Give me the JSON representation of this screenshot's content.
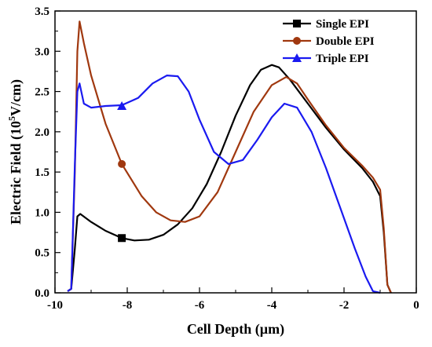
{
  "chart_data": {
    "type": "line",
    "title": "",
    "xlabel": "Cell Depth (µm)",
    "ylabel_parts": {
      "prefix": "Electric Field (10",
      "exponent": "5",
      "suffix": "V/cm)"
    },
    "xlim": [
      -10,
      0
    ],
    "ylim": [
      0,
      3.5
    ],
    "x_ticks": [
      -10,
      -8,
      -6,
      -4,
      -2,
      0
    ],
    "x_tick_labels": [
      "-10",
      "-8",
      "-6",
      "-4",
      "-2",
      "0"
    ],
    "y_ticks": [
      0,
      0.5,
      1.0,
      1.5,
      2.0,
      2.5,
      3.0,
      3.5
    ],
    "y_tick_labels": [
      "0.0",
      "0.5",
      "1.0",
      "1.5",
      "2.0",
      "2.5",
      "3.0",
      "3.5"
    ],
    "legend_position": "top-right",
    "series": [
      {
        "name": "Single EPI",
        "color": "#000000",
        "marker": "square",
        "marker_point": [
          -8.15,
          0.68
        ],
        "points": [
          [
            -9.65,
            0.02
          ],
          [
            -9.55,
            0.05
          ],
          [
            -9.45,
            0.55
          ],
          [
            -9.38,
            0.95
          ],
          [
            -9.3,
            0.98
          ],
          [
            -9.0,
            0.88
          ],
          [
            -8.6,
            0.77
          ],
          [
            -8.15,
            0.68
          ],
          [
            -7.8,
            0.65
          ],
          [
            -7.4,
            0.66
          ],
          [
            -7.0,
            0.72
          ],
          [
            -6.6,
            0.85
          ],
          [
            -6.2,
            1.05
          ],
          [
            -5.8,
            1.35
          ],
          [
            -5.4,
            1.75
          ],
          [
            -5.0,
            2.2
          ],
          [
            -4.6,
            2.58
          ],
          [
            -4.3,
            2.77
          ],
          [
            -4.0,
            2.83
          ],
          [
            -3.8,
            2.8
          ],
          [
            -3.5,
            2.65
          ],
          [
            -3.0,
            2.35
          ],
          [
            -2.5,
            2.05
          ],
          [
            -2.0,
            1.78
          ],
          [
            -1.5,
            1.55
          ],
          [
            -1.2,
            1.38
          ],
          [
            -1.0,
            1.2
          ],
          [
            -0.9,
            0.75
          ],
          [
            -0.8,
            0.1
          ],
          [
            -0.7,
            0.0
          ]
        ]
      },
      {
        "name": "Double EPI",
        "color": "#a0380f",
        "marker": "circle",
        "marker_point": [
          -8.15,
          1.6
        ],
        "points": [
          [
            -9.65,
            0.02
          ],
          [
            -9.55,
            0.05
          ],
          [
            -9.45,
            1.5
          ],
          [
            -9.38,
            3.0
          ],
          [
            -9.32,
            3.37
          ],
          [
            -9.2,
            3.1
          ],
          [
            -9.0,
            2.7
          ],
          [
            -8.6,
            2.1
          ],
          [
            -8.15,
            1.6
          ],
          [
            -7.6,
            1.2
          ],
          [
            -7.2,
            1.0
          ],
          [
            -6.8,
            0.9
          ],
          [
            -6.4,
            0.88
          ],
          [
            -6.0,
            0.95
          ],
          [
            -5.5,
            1.25
          ],
          [
            -5.0,
            1.75
          ],
          [
            -4.5,
            2.25
          ],
          [
            -4.0,
            2.58
          ],
          [
            -3.6,
            2.68
          ],
          [
            -3.3,
            2.6
          ],
          [
            -3.0,
            2.4
          ],
          [
            -2.5,
            2.08
          ],
          [
            -2.0,
            1.8
          ],
          [
            -1.5,
            1.58
          ],
          [
            -1.2,
            1.43
          ],
          [
            -1.0,
            1.28
          ],
          [
            -0.9,
            0.8
          ],
          [
            -0.8,
            0.1
          ],
          [
            -0.7,
            0.0
          ]
        ]
      },
      {
        "name": "Triple EPI",
        "color": "#1a1af0",
        "marker": "triangle",
        "marker_point": [
          -8.15,
          2.32
        ],
        "points": [
          [
            -9.65,
            0.02
          ],
          [
            -9.55,
            0.05
          ],
          [
            -9.45,
            1.6
          ],
          [
            -9.38,
            2.5
          ],
          [
            -9.32,
            2.6
          ],
          [
            -9.2,
            2.35
          ],
          [
            -9.0,
            2.3
          ],
          [
            -8.6,
            2.32
          ],
          [
            -8.15,
            2.33
          ],
          [
            -7.7,
            2.42
          ],
          [
            -7.3,
            2.6
          ],
          [
            -6.9,
            2.7
          ],
          [
            -6.6,
            2.69
          ],
          [
            -6.3,
            2.5
          ],
          [
            -6.0,
            2.15
          ],
          [
            -5.6,
            1.75
          ],
          [
            -5.2,
            1.6
          ],
          [
            -4.8,
            1.65
          ],
          [
            -4.4,
            1.9
          ],
          [
            -4.0,
            2.18
          ],
          [
            -3.65,
            2.35
          ],
          [
            -3.3,
            2.3
          ],
          [
            -2.9,
            2.0
          ],
          [
            -2.5,
            1.55
          ],
          [
            -2.1,
            1.05
          ],
          [
            -1.7,
            0.55
          ],
          [
            -1.4,
            0.2
          ],
          [
            -1.2,
            0.02
          ],
          [
            -1.0,
            0.0
          ]
        ]
      }
    ]
  }
}
